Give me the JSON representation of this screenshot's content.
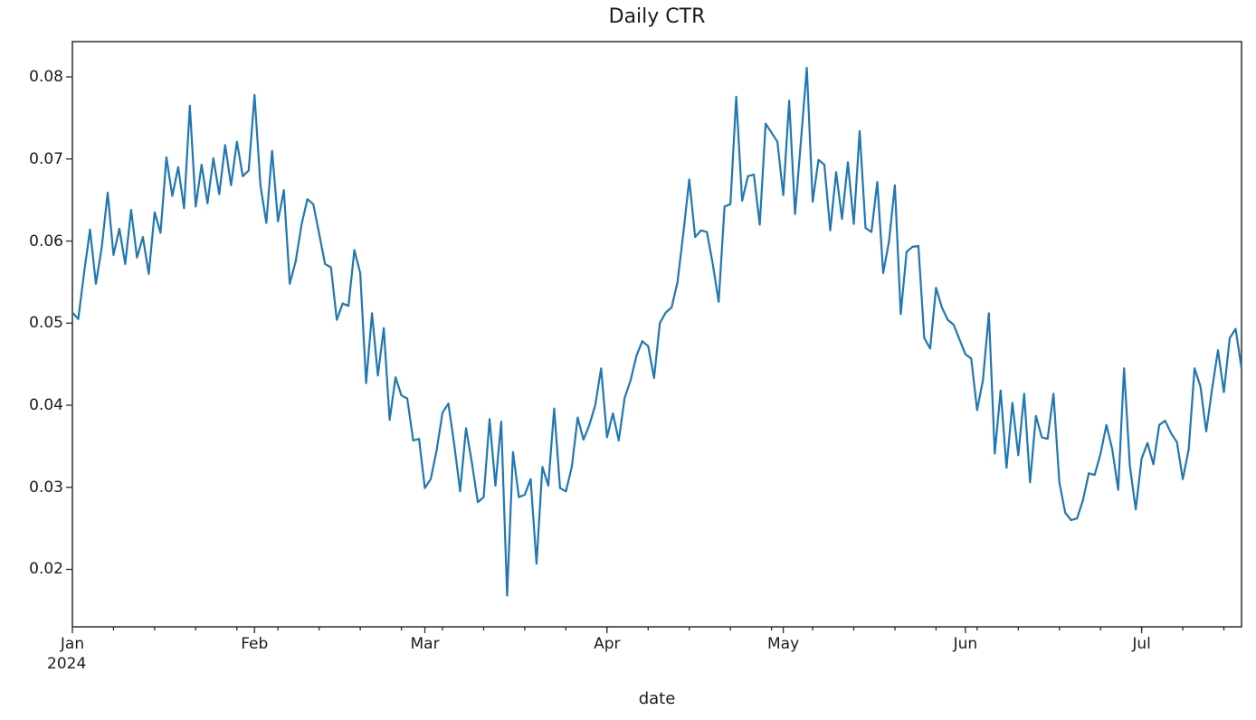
{
  "chart_data": {
    "type": "line",
    "title": "Daily CTR",
    "xlabel": "date",
    "ylabel": "",
    "x_start_date": "2024-01-01",
    "x_end_date": "2024-07-18",
    "x_freq": "daily",
    "grid": false,
    "legend_position": "none",
    "line_color": "#1f77b4",
    "axis_color": "#2b2b2b",
    "text_color": "#1a1a1a",
    "ylim": [
      0.013,
      0.0843
    ],
    "y_ticks": [
      {
        "value": 0.02,
        "label": "0.02"
      },
      {
        "value": 0.03,
        "label": "0.03"
      },
      {
        "value": 0.04,
        "label": "0.04"
      },
      {
        "value": 0.05,
        "label": "0.05"
      },
      {
        "value": 0.06,
        "label": "0.06"
      },
      {
        "value": 0.07,
        "label": "0.07"
      },
      {
        "value": 0.08,
        "label": "0.08"
      }
    ],
    "x_ticks": [
      {
        "day": 0,
        "label": "Jan",
        "sublabel": "2024"
      },
      {
        "day": 31,
        "label": "Feb",
        "sublabel": ""
      },
      {
        "day": 60,
        "label": "Mar",
        "sublabel": ""
      },
      {
        "day": 91,
        "label": "Apr",
        "sublabel": ""
      },
      {
        "day": 121,
        "label": "May",
        "sublabel": ""
      },
      {
        "day": 152,
        "label": "Jun",
        "sublabel": ""
      },
      {
        "day": 182,
        "label": "Jul",
        "sublabel": ""
      }
    ],
    "x_minor_tick_every_days": 7,
    "values": [
      0.0513,
      0.0505,
      0.0562,
      0.0614,
      0.0548,
      0.0593,
      0.0659,
      0.0583,
      0.0615,
      0.0572,
      0.0638,
      0.058,
      0.0605,
      0.056,
      0.0635,
      0.061,
      0.0702,
      0.0655,
      0.069,
      0.064,
      0.0765,
      0.0642,
      0.0693,
      0.0646,
      0.0701,
      0.0657,
      0.0717,
      0.0668,
      0.0721,
      0.0679,
      0.0686,
      0.0778,
      0.0668,
      0.0622,
      0.071,
      0.0624,
      0.0662,
      0.0548,
      0.0575,
      0.062,
      0.0651,
      0.0645,
      0.0609,
      0.0572,
      0.0568,
      0.0504,
      0.0524,
      0.0521,
      0.0589,
      0.0561,
      0.0427,
      0.0512,
      0.0436,
      0.0494,
      0.0382,
      0.0434,
      0.0412,
      0.0408,
      0.0357,
      0.0359,
      0.0299,
      0.031,
      0.0345,
      0.0391,
      0.0402,
      0.0352,
      0.0295,
      0.0372,
      0.033,
      0.0282,
      0.0288,
      0.0383,
      0.0302,
      0.038,
      0.0168,
      0.0343,
      0.0288,
      0.0291,
      0.031,
      0.0207,
      0.0325,
      0.0302,
      0.0396,
      0.0299,
      0.0295,
      0.0325,
      0.0385,
      0.0358,
      0.0376,
      0.04,
      0.0445,
      0.0361,
      0.039,
      0.0357,
      0.0409,
      0.043,
      0.046,
      0.0478,
      0.0472,
      0.0433,
      0.05,
      0.0513,
      0.0519,
      0.055,
      0.061,
      0.0675,
      0.0605,
      0.0613,
      0.0611,
      0.0572,
      0.0526,
      0.0642,
      0.0645,
      0.0776,
      0.0649,
      0.0679,
      0.0681,
      0.062,
      0.0743,
      0.0732,
      0.0721,
      0.0656,
      0.0771,
      0.0633,
      0.0722,
      0.0811,
      0.0648,
      0.0699,
      0.0693,
      0.0613,
      0.0684,
      0.0627,
      0.0696,
      0.0621,
      0.0734,
      0.0616,
      0.0611,
      0.0672,
      0.0561,
      0.06,
      0.0668,
      0.0511,
      0.0587,
      0.0593,
      0.0594,
      0.0482,
      0.0469,
      0.0543,
      0.0519,
      0.0504,
      0.0498,
      0.048,
      0.0462,
      0.0457,
      0.0394,
      0.0431,
      0.0512,
      0.0341,
      0.0418,
      0.0324,
      0.0403,
      0.0339,
      0.0414,
      0.0306,
      0.0387,
      0.0361,
      0.0359,
      0.0414,
      0.0306,
      0.0269,
      0.026,
      0.0262,
      0.0284,
      0.0317,
      0.0315,
      0.0341,
      0.0376,
      0.0346,
      0.0297,
      0.0445,
      0.0326,
      0.0273,
      0.0335,
      0.0354,
      0.0328,
      0.0376,
      0.0381,
      0.0366,
      0.0355,
      0.031,
      0.0346,
      0.0445,
      0.0423,
      0.0368,
      0.042,
      0.0467,
      0.0416,
      0.0482,
      0.0493,
      0.0445
    ]
  }
}
